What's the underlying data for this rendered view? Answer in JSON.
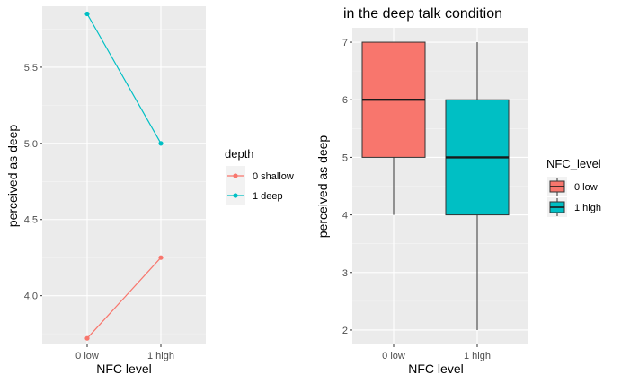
{
  "chart_data": [
    {
      "type": "line",
      "title": "",
      "xlabel": "NFC level",
      "ylabel": "perceived as deep",
      "categories": [
        "0 low",
        "1 high"
      ],
      "ylim": [
        3.68,
        5.9
      ],
      "yticks": [
        4.0,
        4.5,
        5.0,
        5.5
      ],
      "ytick_labels": [
        "4.0",
        "4.5",
        "5.0",
        "5.5"
      ],
      "grid": true,
      "legend": {
        "title": "depth",
        "position": "right"
      },
      "series": [
        {
          "name": "0 shallow",
          "color": "#F8766D",
          "values": [
            3.72,
            4.25
          ]
        },
        {
          "name": "1 deep",
          "color": "#00BFC4",
          "values": [
            5.85,
            5.0
          ]
        }
      ]
    },
    {
      "type": "box",
      "title": "in the deep talk condition",
      "xlabel": "NFC level",
      "ylabel": "perceived as deep",
      "categories": [
        "0 low",
        "1 high"
      ],
      "ylim": [
        1.75,
        7.25
      ],
      "yticks": [
        2,
        3,
        4,
        5,
        6,
        7
      ],
      "ytick_labels": [
        "2",
        "3",
        "4",
        "5",
        "6",
        "7"
      ],
      "grid": true,
      "legend": {
        "title": "NFC_level",
        "position": "right"
      },
      "boxes": [
        {
          "name": "0 low",
          "color": "#F8766D",
          "min": 4,
          "q1": 5,
          "median": 6,
          "q3": 7,
          "max": 7
        },
        {
          "name": "1 high",
          "color": "#00BFC4",
          "min": 2,
          "q1": 4,
          "median": 5,
          "q3": 6,
          "max": 7
        }
      ]
    }
  ]
}
